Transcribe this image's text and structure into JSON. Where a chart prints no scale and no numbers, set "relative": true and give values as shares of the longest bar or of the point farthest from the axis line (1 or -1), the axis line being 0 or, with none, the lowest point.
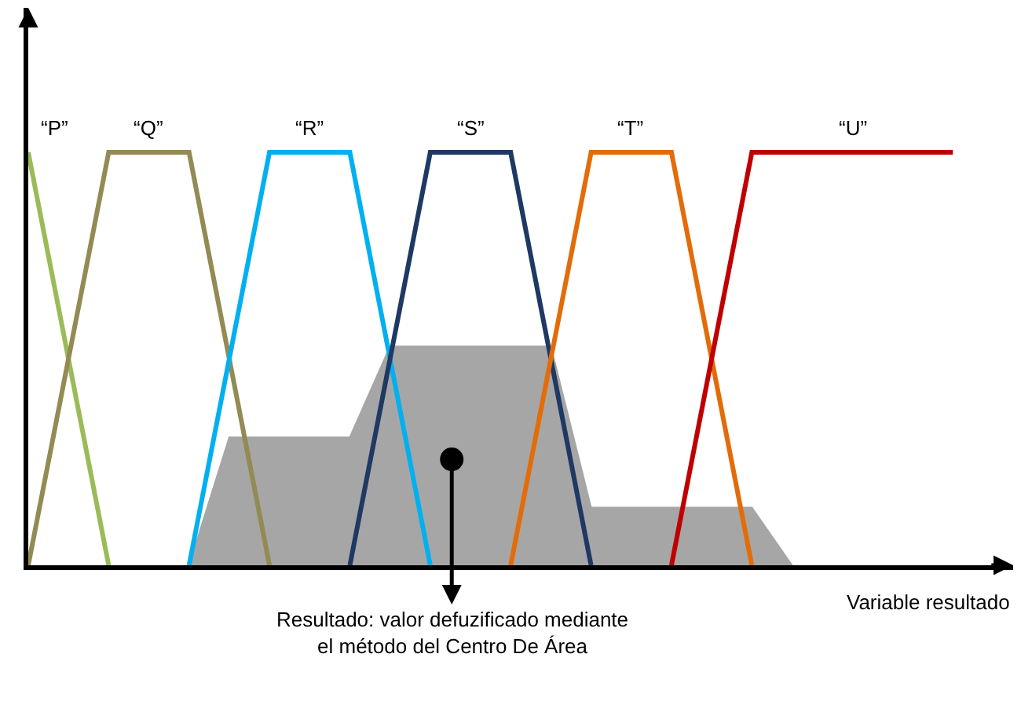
{
  "chart_data": {
    "type": "line",
    "relative": true,
    "xlabel": "Variable resultado",
    "categories": [
      null,
      null,
      null,
      null,
      null,
      null,
      null,
      null,
      null,
      null,
      null,
      null,
      null,
      null,
      null,
      null,
      null,
      null,
      null,
      null,
      null,
      null,
      null,
      null
    ],
    "series": [
      {
        "name": "“P”",
        "color": "#9bbb59",
        "values": [
          1,
          0.5,
          0,
          null,
          null,
          null,
          null,
          null,
          null,
          null,
          null,
          null,
          null,
          null,
          null,
          null,
          null,
          null,
          null,
          null,
          null,
          null,
          null,
          null
        ]
      },
      {
        "name": "“Q”",
        "color": "#948a54",
        "values": [
          0,
          0.5,
          1,
          1,
          1,
          0.5,
          0,
          null,
          null,
          null,
          null,
          null,
          null,
          null,
          null,
          null,
          null,
          null,
          null,
          null,
          null,
          null,
          null,
          null
        ]
      },
      {
        "name": "“R”",
        "color": "#00b0f0",
        "values": [
          null,
          null,
          null,
          null,
          0,
          0.5,
          1,
          1,
          1,
          0.5,
          0,
          null,
          null,
          null,
          null,
          null,
          null,
          null,
          null,
          null,
          null,
          null,
          null,
          null
        ]
      },
      {
        "name": "“S”",
        "color": "#1f3864",
        "values": [
          null,
          null,
          null,
          null,
          null,
          null,
          null,
          null,
          0,
          0.5,
          1,
          1,
          1,
          0.5,
          0,
          null,
          null,
          null,
          null,
          null,
          null,
          null,
          null,
          null
        ]
      },
      {
        "name": "“T”",
        "color": "#e36c09",
        "values": [
          null,
          null,
          null,
          null,
          null,
          null,
          null,
          null,
          null,
          null,
          null,
          null,
          0,
          0.5,
          1,
          1,
          1,
          0.5,
          0,
          null,
          null,
          null,
          null,
          null
        ]
      },
      {
        "name": "“U”",
        "color": "#c00000",
        "values": [
          null,
          null,
          null,
          null,
          null,
          null,
          null,
          null,
          null,
          null,
          null,
          null,
          null,
          null,
          null,
          null,
          0,
          0.5,
          1,
          1,
          1,
          1,
          1,
          1
        ]
      },
      {
        "type": "area",
        "color": "#a6a6a6",
        "values": [
          null,
          null,
          null,
          null,
          0,
          0.31,
          0.31,
          0.31,
          0.31,
          0.53,
          0.53,
          0.53,
          0.53,
          0.53,
          0.14,
          0.14,
          0.14,
          0.14,
          0.14,
          0,
          null,
          null,
          null,
          null
        ]
      }
    ],
    "legend": false,
    "annotations": [
      "Resultado: valor defuzificado mediante\nel método del Centro De Área"
    ]
  }
}
